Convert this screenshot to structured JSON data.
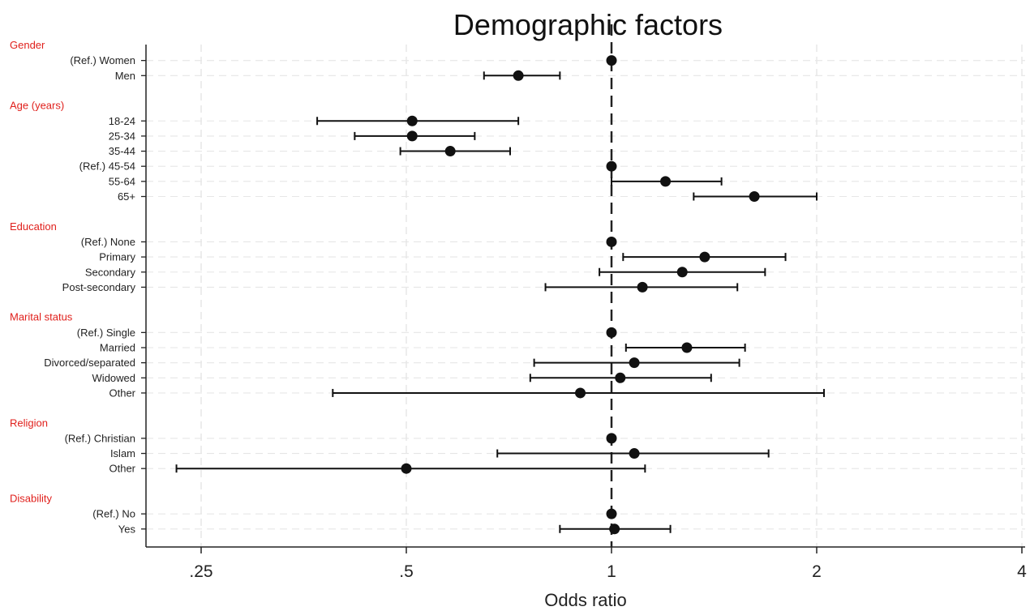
{
  "chart_data": {
    "type": "forest",
    "title": "Demographic factors",
    "xlabel": "Odds ratio",
    "x_scale": "log2",
    "xlim": [
      0.2,
      4.0
    ],
    "xticks": [
      0.25,
      0.5,
      1,
      2,
      4
    ],
    "xtick_labels": [
      ".25",
      ".5",
      "1",
      "2",
      "4"
    ],
    "reference_line": 1,
    "grid": true,
    "groups": [
      {
        "name": "Gender",
        "rows": [
          {
            "label": "(Ref.) Women",
            "or": 1.0,
            "lo": 1.0,
            "hi": 1.0
          },
          {
            "label": "Men",
            "or": 0.73,
            "lo": 0.65,
            "hi": 0.84
          }
        ]
      },
      {
        "name": "Age (years)",
        "rows": [
          {
            "label": "18-24",
            "or": 0.51,
            "lo": 0.37,
            "hi": 0.73
          },
          {
            "label": "25-34",
            "or": 0.51,
            "lo": 0.42,
            "hi": 0.63
          },
          {
            "label": "35-44",
            "or": 0.58,
            "lo": 0.49,
            "hi": 0.71
          },
          {
            "label": "(Ref.) 45-54",
            "or": 1.0,
            "lo": 1.0,
            "hi": 1.0
          },
          {
            "label": "55-64",
            "or": 1.2,
            "lo": 1.0,
            "hi": 1.45
          },
          {
            "label": "65+",
            "or": 1.62,
            "lo": 1.32,
            "hi": 2.0
          }
        ]
      },
      {
        "name": "Education",
        "rows": [
          {
            "label": "(Ref.) None",
            "or": 1.0,
            "lo": 1.0,
            "hi": 1.0
          },
          {
            "label": "Primary",
            "or": 1.37,
            "lo": 1.04,
            "hi": 1.8
          },
          {
            "label": "Secondary",
            "or": 1.27,
            "lo": 0.96,
            "hi": 1.68
          },
          {
            "label": "Post-secondary",
            "or": 1.11,
            "lo": 0.8,
            "hi": 1.53
          }
        ]
      },
      {
        "name": "Marital status",
        "rows": [
          {
            "label": "(Ref.) Single",
            "or": 1.0,
            "lo": 1.0,
            "hi": 1.0
          },
          {
            "label": "Married",
            "or": 1.29,
            "lo": 1.05,
            "hi": 1.57
          },
          {
            "label": "Divorced/separated",
            "or": 1.08,
            "lo": 0.77,
            "hi": 1.54
          },
          {
            "label": "Widowed",
            "or": 1.03,
            "lo": 0.76,
            "hi": 1.4
          },
          {
            "label": "Other",
            "or": 0.9,
            "lo": 0.39,
            "hi": 2.05
          }
        ]
      },
      {
        "name": "Religion",
        "rows": [
          {
            "label": "(Ref.) Christian",
            "or": 1.0,
            "lo": 1.0,
            "hi": 1.0
          },
          {
            "label": "Islam",
            "or": 1.08,
            "lo": 0.68,
            "hi": 1.7
          },
          {
            "label": "Other",
            "or": 0.5,
            "lo": 0.23,
            "hi": 1.12
          }
        ]
      },
      {
        "name": "Disability",
        "rows": [
          {
            "label": "(Ref.) No",
            "or": 1.0,
            "lo": 1.0,
            "hi": 1.0
          },
          {
            "label": "Yes",
            "or": 1.01,
            "lo": 0.84,
            "hi": 1.22
          }
        ]
      }
    ]
  }
}
